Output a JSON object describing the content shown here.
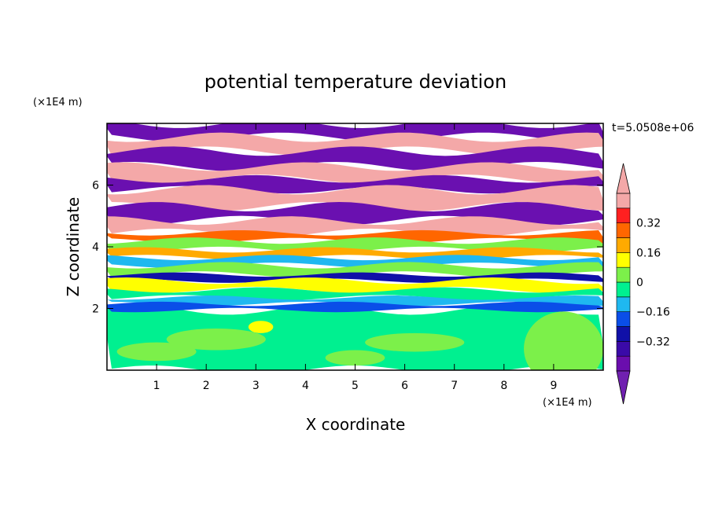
{
  "chart_data": {
    "type": "heatmap",
    "title": "potential temperature deviation",
    "xlabel": "X coordinate",
    "ylabel": "Z coordinate",
    "x_unit": "(×1E4 m)",
    "y_unit": "(×1E4 m)",
    "time_label": "t=5.0508e+06",
    "xlim": [
      0,
      10
    ],
    "ylim": [
      0,
      8
    ],
    "x_ticks": [
      1,
      2,
      3,
      4,
      5,
      6,
      7,
      8,
      9
    ],
    "y_ticks": [
      2,
      4,
      6
    ],
    "colorbar": {
      "levels": [
        -0.48,
        -0.4,
        -0.32,
        -0.24,
        -0.16,
        -0.08,
        0,
        0.08,
        0.16,
        0.24,
        0.32,
        0.4,
        0.48
      ],
      "colors": [
        "#6a0dad",
        "#3a0aa8",
        "#1010a8",
        "#0a4ee8",
        "#1fb8f0",
        "#00f090",
        "#7cf04a",
        "#ffff00",
        "#ffaa00",
        "#ff6600",
        "#ff2020",
        "#f4a8a8"
      ],
      "tick_labels": [
        "0.32",
        "0.16",
        "0",
        "−0.16",
        "−0.32"
      ],
      "tick_values": [
        0.32,
        0.16,
        0,
        -0.16,
        -0.32
      ],
      "under_color": "#7020b0",
      "over_color": "#f4a8a8"
    },
    "bands": [
      {
        "z0": 0.0,
        "z1": 1.95,
        "color": "#00f090"
      },
      {
        "z0": 7.55,
        "z1": 8.0,
        "color": "#6a10b0"
      },
      {
        "z0": 7.1,
        "z1": 7.55,
        "color": "#f4a8a8"
      },
      {
        "z0": 6.6,
        "z1": 7.1,
        "color": "#6a10b0"
      },
      {
        "z0": 6.2,
        "z1": 6.6,
        "color": "#f4a8a8"
      },
      {
        "z0": 5.85,
        "z1": 6.2,
        "color": "#6a10b0"
      },
      {
        "z0": 5.3,
        "z1": 5.85,
        "color": "#f4a8a8"
      },
      {
        "z0": 4.85,
        "z1": 5.3,
        "color": "#6a10b0"
      },
      {
        "z0": 4.45,
        "z1": 4.85,
        "color": "#f4a8a8"
      },
      {
        "z0": 4.2,
        "z1": 4.45,
        "color": "#ff6600"
      },
      {
        "z0": 3.9,
        "z1": 4.2,
        "color": "#7cf04a"
      },
      {
        "z0": 3.65,
        "z1": 3.9,
        "color": "#ffaa00"
      },
      {
        "z0": 3.4,
        "z1": 3.65,
        "color": "#1fb8f0"
      },
      {
        "z0": 3.1,
        "z1": 3.4,
        "color": "#7cf04a"
      },
      {
        "z0": 2.9,
        "z1": 3.1,
        "color": "#1010a8"
      },
      {
        "z0": 2.6,
        "z1": 2.9,
        "color": "#ffff00"
      },
      {
        "z0": 2.35,
        "z1": 2.6,
        "color": "#00f090"
      },
      {
        "z0": 2.15,
        "z1": 2.35,
        "color": "#1fb8f0"
      },
      {
        "z0": 1.95,
        "z1": 2.15,
        "color": "#0a4ee8"
      }
    ],
    "lower_patches": [
      {
        "x": 2.2,
        "z": 1.0,
        "rx": 1.0,
        "rz": 0.35,
        "color": "#7cf04a"
      },
      {
        "x": 3.1,
        "z": 1.4,
        "rx": 0.25,
        "rz": 0.2,
        "color": "#ffff00"
      },
      {
        "x": 1.0,
        "z": 0.6,
        "rx": 0.8,
        "rz": 0.3,
        "color": "#7cf04a"
      },
      {
        "x": 6.2,
        "z": 0.9,
        "rx": 1.0,
        "rz": 0.3,
        "color": "#7cf04a"
      },
      {
        "x": 9.2,
        "z": 0.7,
        "rx": 0.8,
        "rz": 1.2,
        "color": "#7cf04a"
      },
      {
        "x": 5.0,
        "z": 0.4,
        "rx": 0.6,
        "rz": 0.25,
        "color": "#7cf04a"
      }
    ]
  }
}
